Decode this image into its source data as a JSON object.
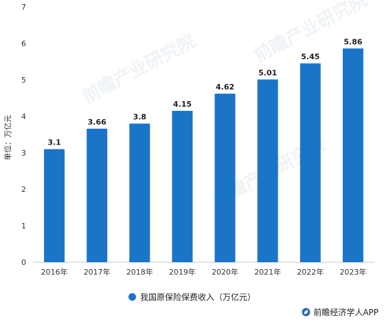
{
  "chart_data": {
    "type": "bar",
    "categories": [
      "2016年",
      "2017年",
      "2018年",
      "2019年",
      "2020年",
      "2021年",
      "2022年",
      "2023年"
    ],
    "values": [
      3.1,
      3.66,
      3.8,
      4.15,
      4.62,
      5.01,
      5.45,
      5.86
    ],
    "data_labels": [
      "3.1",
      "3.66",
      "3.8",
      "4.15",
      "4.62",
      "5.01",
      "5.45",
      "5.86"
    ],
    "ylabel": "单位：万亿元",
    "ylim": [
      0,
      7
    ],
    "yticks": [
      0,
      1,
      2,
      3,
      4,
      5,
      6,
      7
    ],
    "grid": false,
    "legend_position": "bottom",
    "series": [
      {
        "name": "我国原保险保费收入（万亿元）",
        "color": "#1a75c9"
      }
    ]
  },
  "footer": {
    "source": "前瞻经济学人APP",
    "icon": "leaf-logo-icon"
  },
  "watermark": {
    "text": "前瞻产业研究院"
  }
}
